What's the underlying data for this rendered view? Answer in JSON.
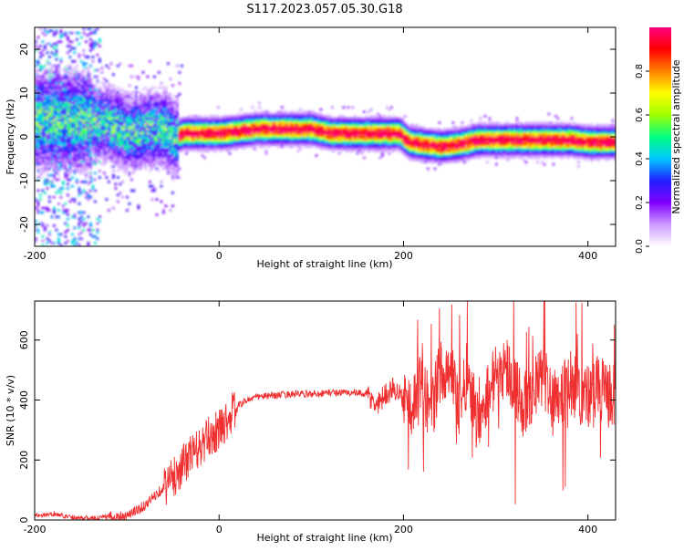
{
  "title": "S117.2023.057.05.30.G18",
  "colors": {
    "snr_line": "#f03030",
    "colormap": [
      "#ffffff",
      "#cc99ff",
      "#8000ff",
      "#2020ff",
      "#00c8ff",
      "#00ff80",
      "#a0ff00",
      "#ffff00",
      "#ff8000",
      "#ff0000",
      "#ff0080"
    ]
  },
  "chart_data": [
    {
      "type": "heatmap",
      "title": "S117.2023.057.05.30.G18",
      "xlabel": "Height of straight line (km)",
      "ylabel": "Frequency (Hz)",
      "xlim": [
        -200,
        430
      ],
      "ylim": [
        -25,
        25
      ],
      "x_ticks": [
        -200,
        0,
        200,
        400
      ],
      "y_ticks": [
        -20,
        -10,
        0,
        10,
        20
      ],
      "colorbar": {
        "label": "Normalized spectral amplitude",
        "range": [
          0,
          1
        ],
        "ticks": [
          0.0,
          0.2,
          0.4,
          0.6,
          0.8
        ]
      },
      "ridge": {
        "x": [
          -200,
          -150,
          -120,
          -100,
          -80,
          -60,
          -50,
          -40,
          -20,
          0,
          20,
          40,
          60,
          80,
          100,
          120,
          140,
          160,
          180,
          195,
          205,
          220,
          240,
          260,
          280,
          300,
          320,
          340,
          360,
          380,
          400,
          420,
          430
        ],
        "freq": [
          4,
          4,
          3,
          1,
          2,
          2,
          0,
          1,
          1,
          1,
          1.5,
          2,
          2,
          2,
          2,
          1,
          1,
          1,
          1,
          1,
          -1,
          -1.5,
          -2,
          -1.5,
          -0.5,
          -0.5,
          -0.5,
          -0.5,
          -0.5,
          -0.5,
          -1,
          -1,
          -1
        ]
      }
    },
    {
      "type": "line",
      "xlabel": "Height of straight line (km)",
      "ylabel": "SNR (10 * v/v)",
      "xlim": [
        -200,
        430
      ],
      "ylim": [
        0,
        730
      ],
      "x_ticks": [
        -200,
        0,
        200,
        400
      ],
      "y_ticks": [
        0,
        200,
        400,
        600
      ],
      "series": [
        {
          "x": [
            -200,
            -180,
            -160,
            -140,
            -120,
            -100,
            -90,
            -80,
            -70,
            -60,
            -50,
            -40,
            -30,
            -20,
            -10,
            0,
            10,
            20,
            30,
            40,
            60,
            80,
            100,
            120,
            140,
            160,
            170,
            180,
            190,
            200,
            210,
            220,
            230,
            240,
            250,
            260,
            270,
            280,
            290,
            300,
            310,
            320,
            330,
            340,
            350,
            360,
            370,
            380,
            390,
            400,
            410,
            420,
            430
          ],
          "y": [
            15,
            20,
            10,
            5,
            10,
            15,
            30,
            50,
            80,
            110,
            140,
            180,
            220,
            240,
            280,
            300,
            340,
            380,
            400,
            410,
            415,
            420,
            420,
            425,
            425,
            420,
            380,
            420,
            440,
            400,
            380,
            450,
            360,
            500,
            520,
            380,
            500,
            330,
            420,
            480,
            520,
            460,
            380,
            420,
            480,
            440,
            420,
            460,
            430,
            410,
            440,
            420,
            410
          ]
        }
      ]
    }
  ]
}
